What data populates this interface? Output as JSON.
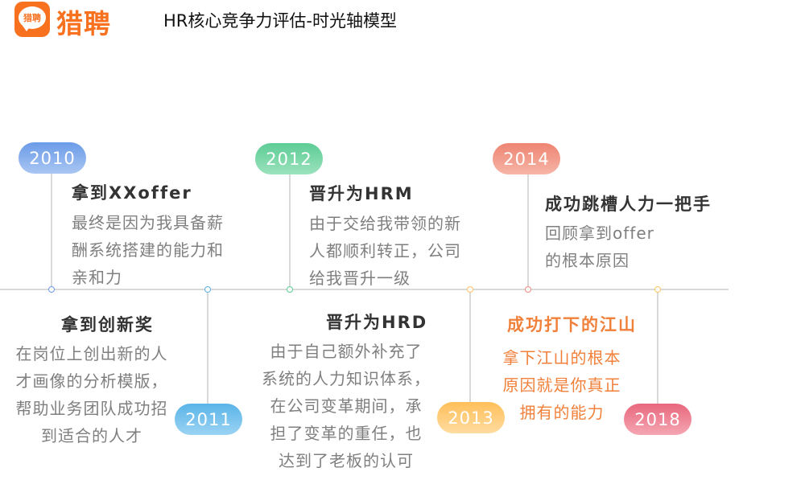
{
  "header": {
    "logo_badge": "猎聘",
    "logo_text": "猎聘",
    "title": "HR核心竞争力评估-时光轴模型"
  },
  "colors": {
    "brand": "#f7711f",
    "axis": "#d9d9d9",
    "highlight": "#f0803a"
  },
  "events": [
    {
      "year": "2010",
      "title": "拿到XXoffer",
      "text": [
        "最终是因为我具备薪",
        "酬系统搭建的能力和",
        "亲和力"
      ]
    },
    {
      "year": "2011",
      "title": "拿到创新奖",
      "text": [
        "在岗位上创出新的人",
        "才画像的分析模版，",
        "帮助业务团队成功招",
        "到适合的人才"
      ]
    },
    {
      "year": "2012",
      "title": "晋升为HRM",
      "text": [
        "由于交给我带领的新",
        "人都顺利转正，公司",
        "给我晋升一级"
      ]
    },
    {
      "year": "2013",
      "title": "晋升为HRD",
      "text": [
        "由于自己额外补充了",
        "系统的人力知识体系，",
        "在公司变革期间，承",
        "担了变革的重任，也",
        "达到了老板的认可"
      ]
    },
    {
      "year": "2014",
      "title": "成功跳槽人力一把手",
      "text": [
        "回顾拿到offer",
        "的根本原因"
      ]
    },
    {
      "year": "2018",
      "title": "成功打下的江山",
      "text": [
        "拿下江山的根本",
        "原因就是你真正",
        "拥有的能力"
      ]
    }
  ]
}
